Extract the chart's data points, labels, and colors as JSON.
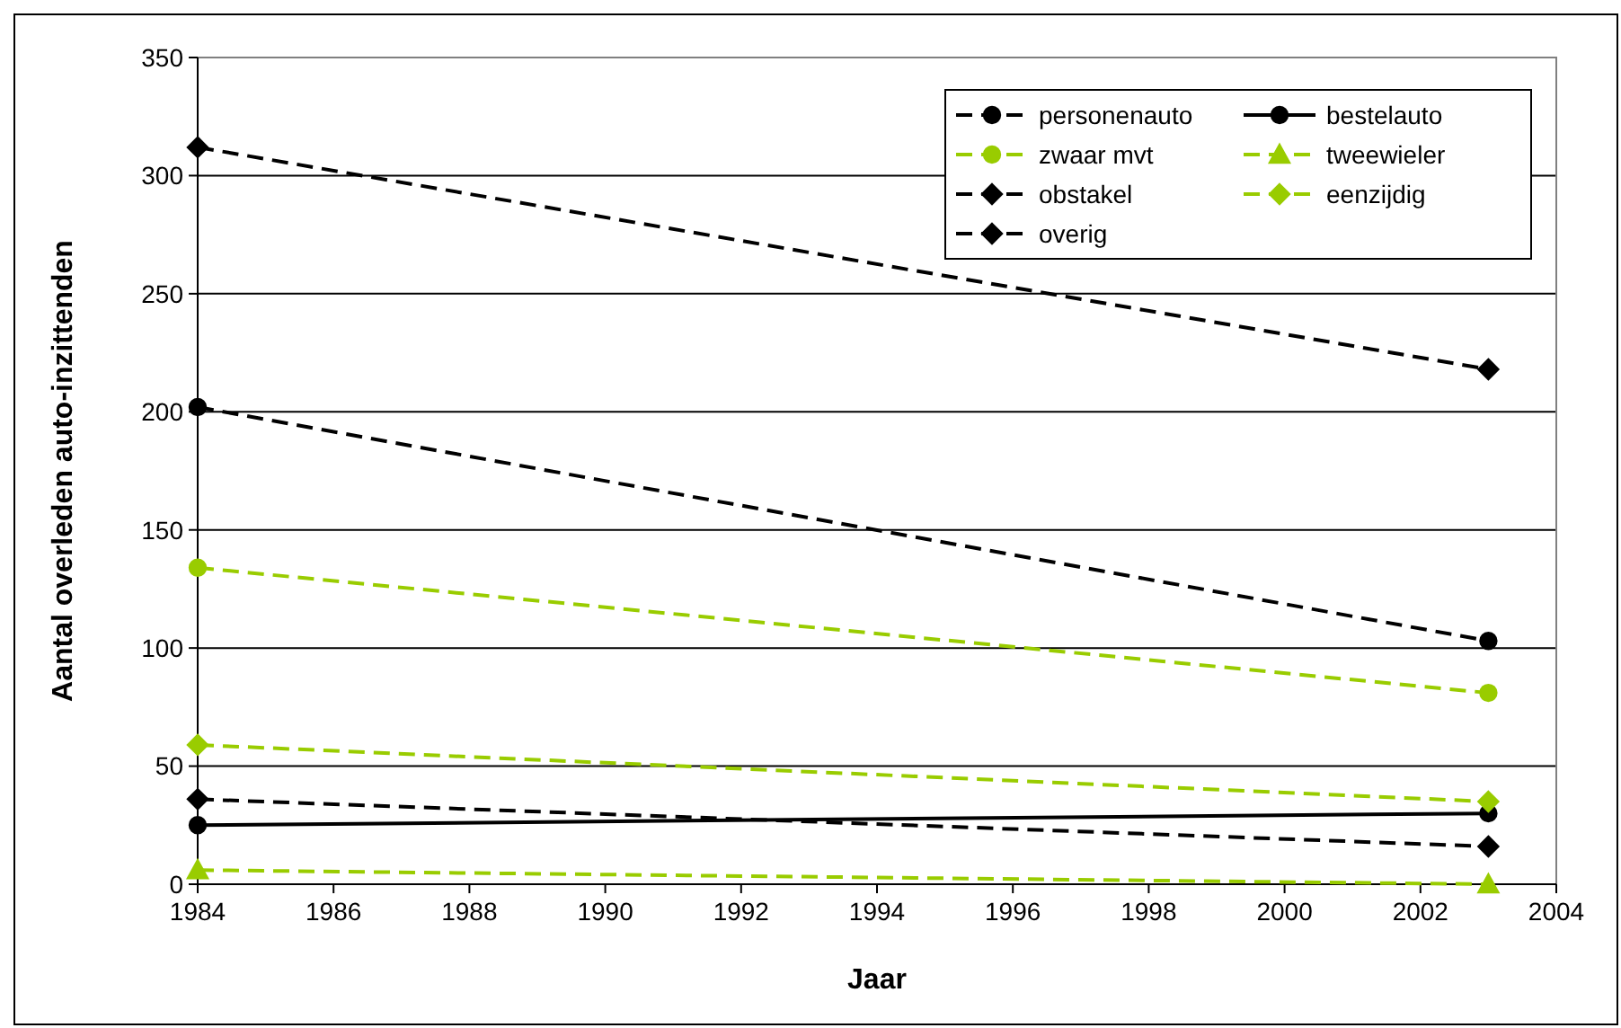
{
  "chart_data": {
    "type": "line",
    "xlabel": "Jaar",
    "ylabel": "Aantal overleden auto-inzittenden",
    "x": [
      1984,
      2003
    ],
    "xlim": [
      1984,
      2004
    ],
    "xticks": [
      1984,
      1986,
      1988,
      1990,
      1992,
      1994,
      1996,
      1998,
      2000,
      2002,
      2004
    ],
    "ylim": [
      0,
      350
    ],
    "yticks": [
      0,
      50,
      100,
      150,
      200,
      250,
      300,
      350
    ],
    "grid": "y",
    "legend": "top right",
    "series": [
      {
        "name": "personenauto",
        "color": "#000000",
        "values": [
          202,
          103
        ],
        "marker": "circle",
        "line_style": "dashed"
      },
      {
        "name": "bestelauto",
        "color": "#000000",
        "values": [
          25,
          30
        ],
        "marker": "circle",
        "line_style": "solid"
      },
      {
        "name": "zwaar mvt",
        "color": "#99cc00",
        "values": [
          134,
          81
        ],
        "marker": "circle",
        "line_style": "dashed"
      },
      {
        "name": "tweewieler",
        "color": "#99cc00",
        "values": [
          6,
          0
        ],
        "marker": "triangle",
        "line_style": "dashed"
      },
      {
        "name": "obstakel",
        "color": "#000000",
        "values": [
          312,
          218
        ],
        "marker": "diamond",
        "line_style": "dashed"
      },
      {
        "name": "eenzijdig",
        "color": "#99cc00",
        "values": [
          59,
          35
        ],
        "marker": "diamond",
        "line_style": "dashed"
      },
      {
        "name": "overig",
        "color": "#000000",
        "values": [
          36,
          16
        ],
        "marker": "diamond",
        "line_style": "dashed"
      }
    ]
  }
}
